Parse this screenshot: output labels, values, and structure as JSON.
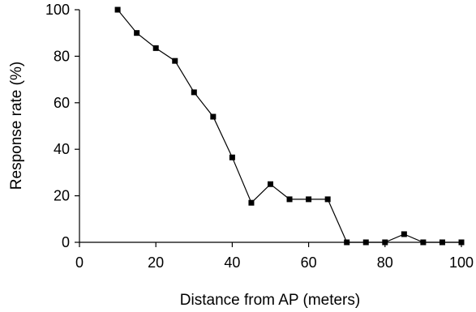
{
  "chart_data": {
    "type": "line",
    "title": "",
    "xlabel": "Distance from AP (meters)",
    "ylabel": "Response rate (%)",
    "xlim": [
      0,
      100
    ],
    "ylim": [
      0,
      100
    ],
    "x_ticks": [
      0,
      20,
      40,
      60,
      80,
      100
    ],
    "y_ticks": [
      0,
      20,
      40,
      60,
      80,
      100
    ],
    "grid": false,
    "legend": "none",
    "marker": "square",
    "series": [
      {
        "x": [
          10,
          15,
          20,
          25,
          30,
          35,
          40,
          45,
          50,
          55,
          60,
          65,
          70,
          75,
          80,
          85,
          90,
          95,
          100
        ],
        "y": [
          100,
          90,
          83.5,
          78,
          64.5,
          54,
          36.5,
          17,
          25,
          18.5,
          18.5,
          18.5,
          0,
          0,
          0,
          3.5,
          0,
          0,
          0
        ]
      }
    ]
  }
}
